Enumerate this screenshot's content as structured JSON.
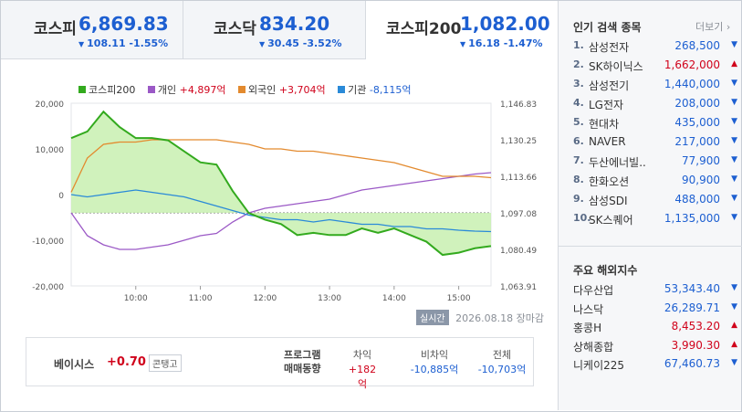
{
  "tabs": [
    {
      "name": "코스피",
      "value": "6,869.83",
      "change": "108.11 -1.55%",
      "active": false
    },
    {
      "name": "코스닥",
      "value": "834.20",
      "change": "30.45 -3.52%",
      "active": false
    },
    {
      "name": "코스피200",
      "value": "1,082.00",
      "change": "16.18 -1.47%",
      "active": true
    }
  ],
  "legend": [
    {
      "label": "코스피200",
      "value": "",
      "color": "#33aa1e"
    },
    {
      "label": "개인",
      "value": "+4,897억",
      "color": "#9b59c6",
      "dir": "up"
    },
    {
      "label": "외국인",
      "value": "+3,704억",
      "color": "#e38a2e",
      "dir": "up"
    },
    {
      "label": "기관",
      "value": "-8,115억",
      "color": "#2a8ad8",
      "dir": "dn"
    }
  ],
  "chart_data": {
    "type": "line",
    "x": [
      "09:00",
      "09:15",
      "09:30",
      "09:45",
      "10:00",
      "10:15",
      "10:30",
      "10:45",
      "11:00",
      "11:15",
      "11:30",
      "11:45",
      "12:00",
      "12:15",
      "12:30",
      "12:45",
      "13:00",
      "13:15",
      "13:30",
      "13:45",
      "14:00",
      "14:15",
      "14:30",
      "14:45",
      "15:00",
      "15:15",
      "15:30"
    ],
    "x_ticks": [
      "10:00",
      "11:00",
      "12:00",
      "13:00",
      "14:00",
      "15:00"
    ],
    "left_axis": {
      "ticks": [
        "20,000",
        "10,000",
        "0",
        "-10,000",
        "-20,000"
      ],
      "range": [
        -20000,
        20000
      ]
    },
    "right_axis": {
      "ticks": [
        "1,146.83",
        "1,130.25",
        "1,113.66",
        "1,097.08",
        "1,080.49",
        "1,063.91"
      ],
      "range": [
        1063.91,
        1146.83
      ],
      "reference": 1097.08
    },
    "series": [
      {
        "name": "코스피200",
        "axis": "right",
        "color": "#33aa1e",
        "values": [
          1131,
          1134,
          1143,
          1136,
          1131,
          1131,
          1130,
          1125,
          1120,
          1119,
          1107,
          1097,
          1094,
          1092,
          1087,
          1088,
          1087,
          1087,
          1090,
          1088,
          1090,
          1087,
          1084,
          1078,
          1079,
          1081,
          1082
        ]
      },
      {
        "name": "개인",
        "axis": "left",
        "color": "#9b59c6",
        "values": [
          -4000,
          -9000,
          -11000,
          -12000,
          -12000,
          -11500,
          -11000,
          -10000,
          -9000,
          -8500,
          -6000,
          -4000,
          -3000,
          -2500,
          -2000,
          -1500,
          -1000,
          0,
          1000,
          1500,
          2000,
          2500,
          3000,
          3500,
          4000,
          4500,
          4800
        ]
      },
      {
        "name": "외국인",
        "axis": "left",
        "color": "#e38a2e",
        "values": [
          500,
          8000,
          11000,
          11500,
          11500,
          12000,
          12000,
          12000,
          12000,
          12000,
          11500,
          11000,
          10000,
          10000,
          9500,
          9500,
          9000,
          8500,
          8000,
          7500,
          7000,
          6000,
          5000,
          4000,
          4000,
          4000,
          3700
        ]
      },
      {
        "name": "기관",
        "axis": "left",
        "color": "#2a8ad8",
        "values": [
          0,
          -500,
          0,
          500,
          1000,
          500,
          0,
          -500,
          -1500,
          -2500,
          -3500,
          -4500,
          -5000,
          -5500,
          -5500,
          -6000,
          -5500,
          -6000,
          -6500,
          -6500,
          -7000,
          -7000,
          -7500,
          -7500,
          -7800,
          -8000,
          -8100
        ]
      }
    ]
  },
  "meta": {
    "badge": "실시간",
    "date": "2026.08.18",
    "status": "장마감"
  },
  "basis": {
    "label": "베이시스",
    "value": "+0.70",
    "button": "콘탱고"
  },
  "program": {
    "label_line1": "프로그램",
    "label_line2": "매매동향",
    "cols": [
      {
        "head": "차익",
        "value": "+182억",
        "dir": "up"
      },
      {
        "head": "비차익",
        "value": "-10,885억",
        "dir": "dn"
      },
      {
        "head": "전체",
        "value": "-10,703억",
        "dir": "dn"
      }
    ]
  },
  "popular": {
    "title": "인기 검색 종목",
    "more": "더보기",
    "items": [
      {
        "rank": "1.",
        "name": "삼성전자",
        "price": "268,500",
        "dir": "dn"
      },
      {
        "rank": "2.",
        "name": "SK하이닉스",
        "price": "1,662,000",
        "dir": "up"
      },
      {
        "rank": "3.",
        "name": "삼성전기",
        "price": "1,440,000",
        "dir": "dn"
      },
      {
        "rank": "4.",
        "name": "LG전자",
        "price": "208,000",
        "dir": "dn"
      },
      {
        "rank": "5.",
        "name": "현대차",
        "price": "435,000",
        "dir": "dn"
      },
      {
        "rank": "6.",
        "name": "NAVER",
        "price": "217,000",
        "dir": "dn"
      },
      {
        "rank": "7.",
        "name": "두산에너빌..",
        "price": "77,900",
        "dir": "dn"
      },
      {
        "rank": "8.",
        "name": "한화오션",
        "price": "90,900",
        "dir": "dn"
      },
      {
        "rank": "9.",
        "name": "삼성SDI",
        "price": "488,000",
        "dir": "dn"
      },
      {
        "rank": "10.",
        "name": "SK스퀘어",
        "price": "1,135,000",
        "dir": "dn"
      }
    ]
  },
  "foreign": {
    "title": "주요 해외지수",
    "items": [
      {
        "name": "다우산업",
        "price": "53,343.40",
        "dir": "dn"
      },
      {
        "name": "나스닥",
        "price": "26,289.71",
        "dir": "dn"
      },
      {
        "name": "홍콩H",
        "price": "8,453.20",
        "dir": "up"
      },
      {
        "name": "상해종합",
        "price": "3,990.30",
        "dir": "up"
      },
      {
        "name": "니케이225",
        "price": "67,460.73",
        "dir": "dn"
      }
    ]
  },
  "colors": {
    "up": "#d0021b",
    "down": "#1d5fd1",
    "area_fill": "#c8f0b0"
  }
}
